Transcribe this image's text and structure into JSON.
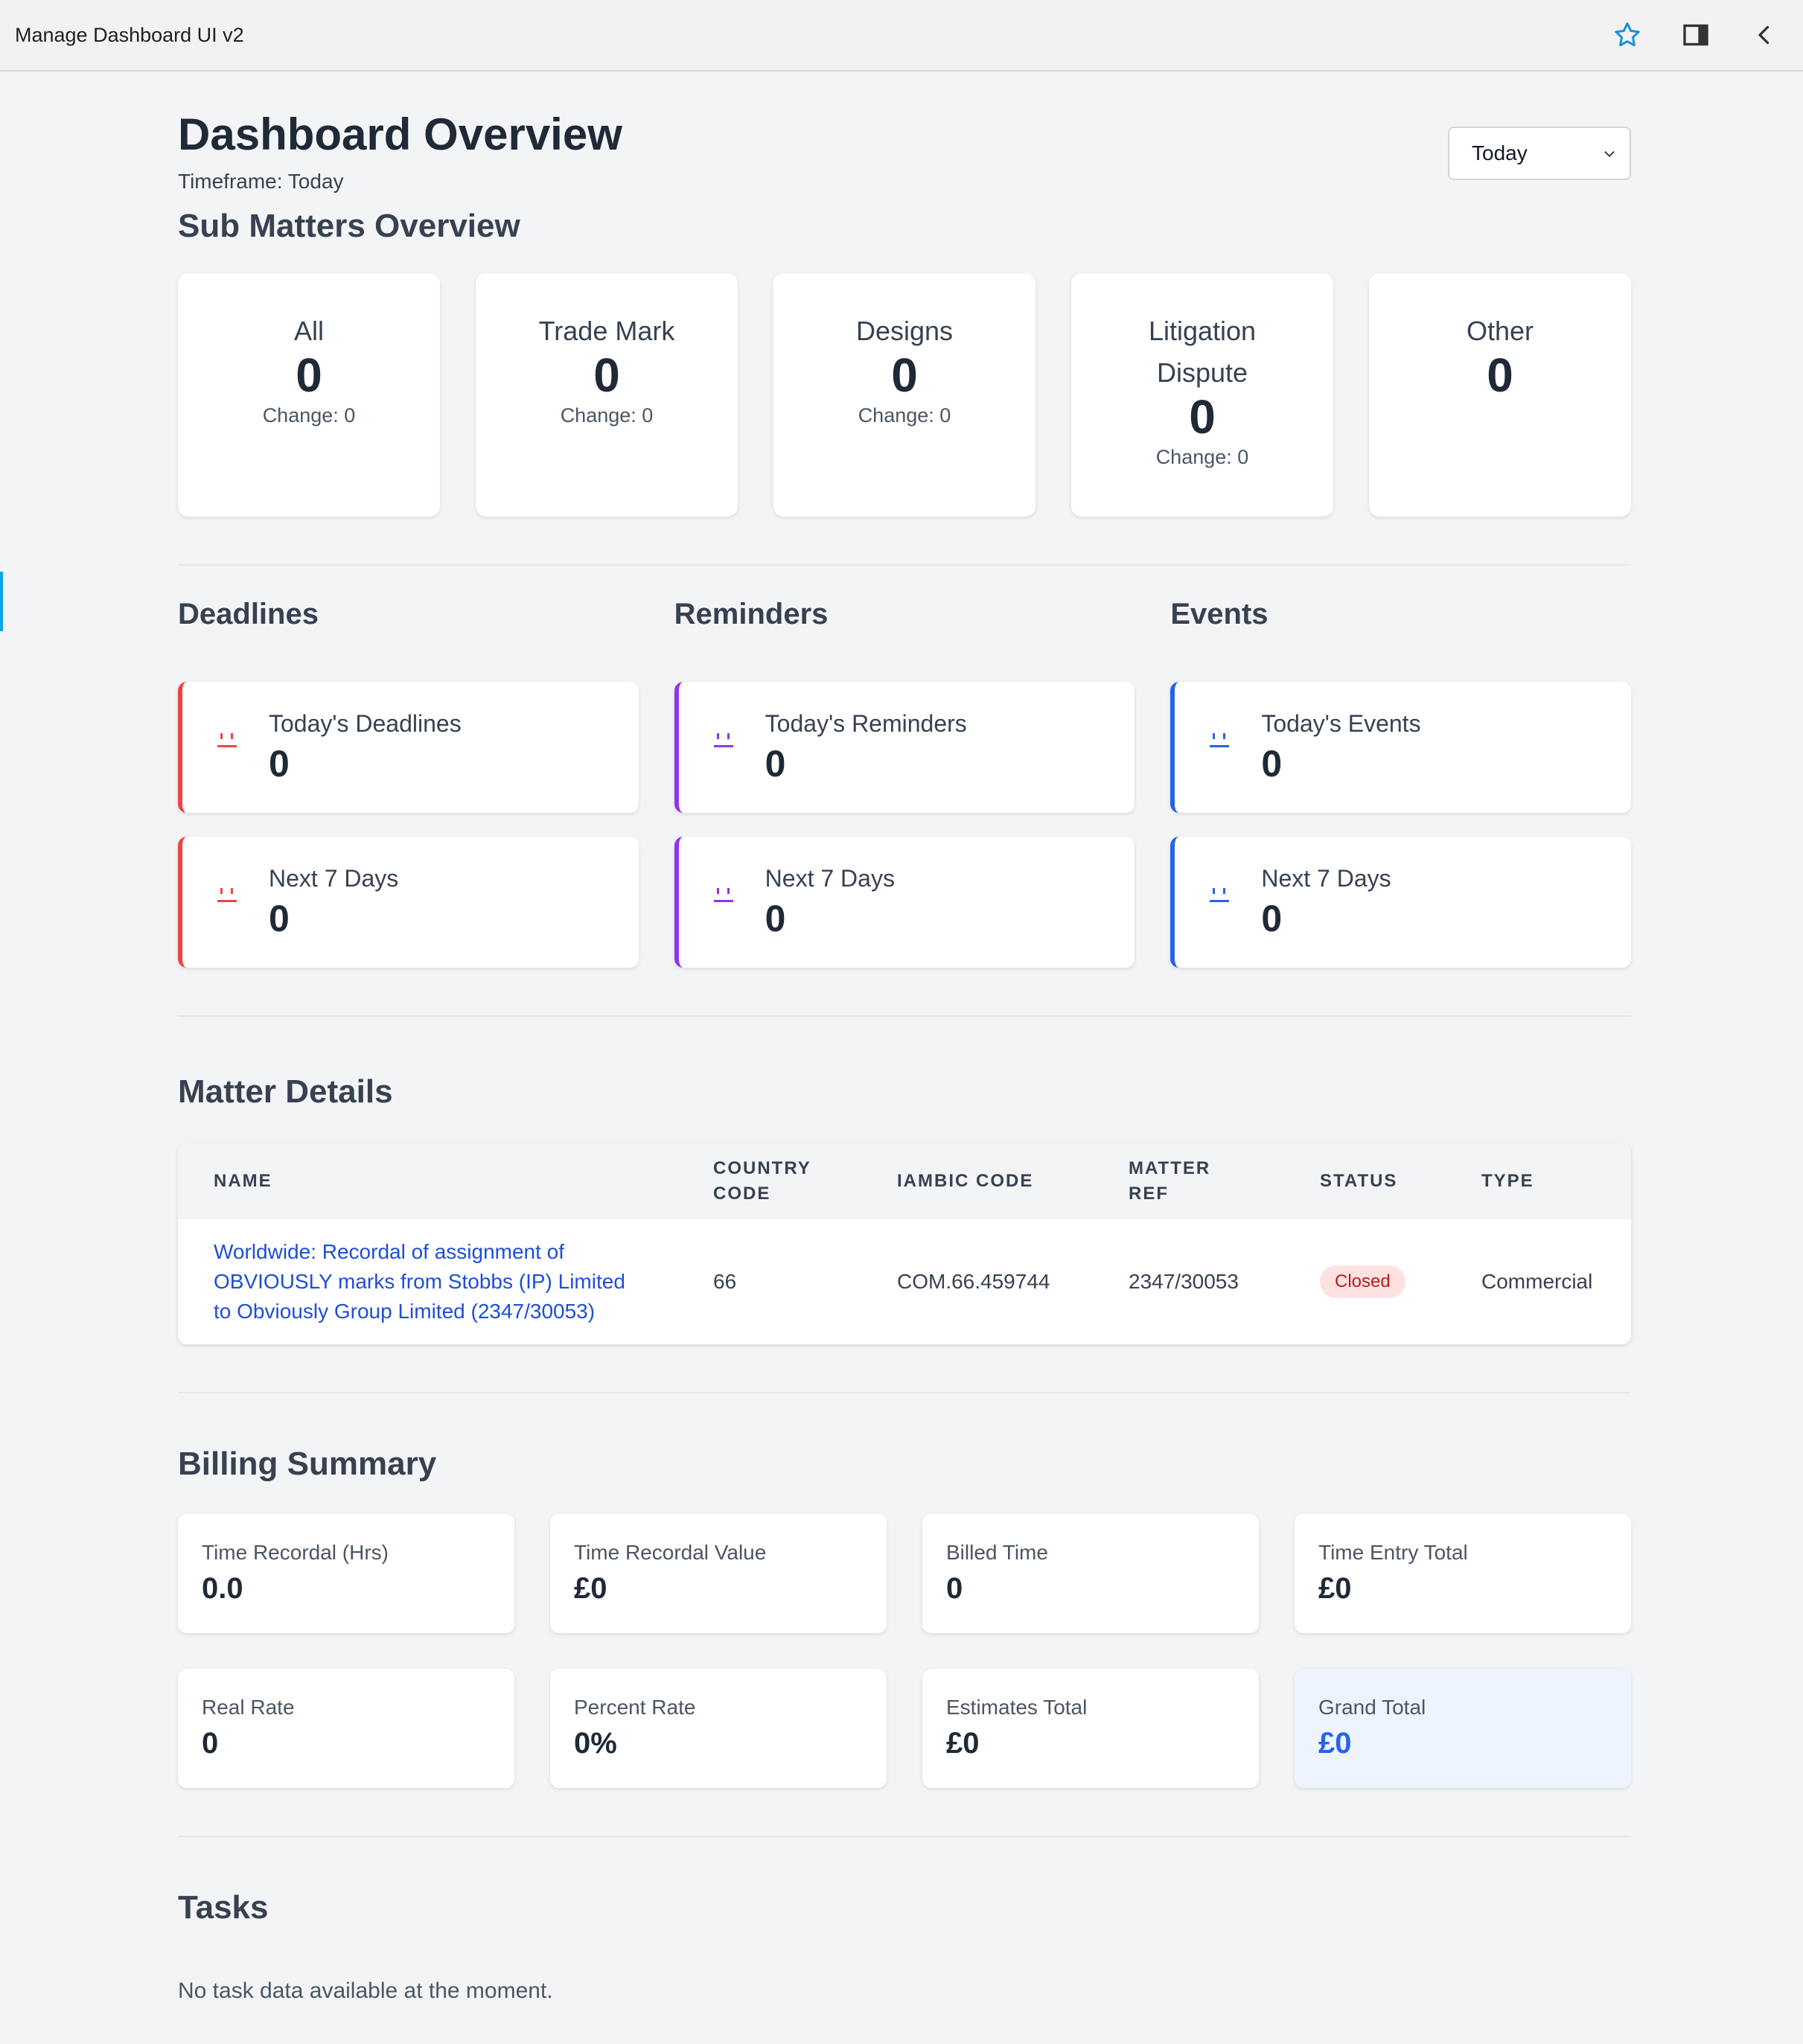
{
  "window": {
    "title": "Manage Dashboard UI v2",
    "icons": [
      "star-icon",
      "sidebar-panel-icon",
      "chevron-left-icon"
    ]
  },
  "header": {
    "title": "Dashboard Overview",
    "timeframe": "Timeframe: Today",
    "select_value": "Today"
  },
  "sub_matters": {
    "title": "Sub Matters Overview",
    "cards": [
      {
        "label": "All",
        "count": "0",
        "change": "Change: 0"
      },
      {
        "label": "Trade Mark",
        "count": "0",
        "change": "Change: 0"
      },
      {
        "label": "Designs",
        "count": "0",
        "change": "Change: 0"
      },
      {
        "label": "Litigation Dispute",
        "count": "0",
        "change": "Change: 0"
      },
      {
        "label": "Other",
        "count": "0",
        "change": ""
      }
    ]
  },
  "deadlines": {
    "title": "Deadlines",
    "today_label": "Today's Deadlines",
    "today_value": "0",
    "next_label": "Next 7 Days",
    "next_value": "0",
    "color": "#ef4444"
  },
  "reminders": {
    "title": "Reminders",
    "today_label": "Today's Reminders",
    "today_value": "0",
    "next_label": "Next 7 Days",
    "next_value": "0",
    "color": "#9333ea"
  },
  "events": {
    "title": "Events",
    "today_label": "Today's Events",
    "today_value": "0",
    "next_label": "Next 7 Days",
    "next_value": "0",
    "color": "#2563eb"
  },
  "matter_details": {
    "title": "Matter Details",
    "columns": {
      "name": "NAME",
      "country_code_1": "COUNTRY",
      "country_code_2": "CODE",
      "iambic_code": "IAMBIC CODE",
      "matter_ref_1": "MATTER",
      "matter_ref_2": "REF",
      "status": "STATUS",
      "type": "TYPE"
    },
    "rows": [
      {
        "name": "Worldwide: Recordal of assignment of OBVIOUSLY marks from Stobbs (IP) Limited to Obviously Group Limited (2347/30053)",
        "country_code": "66",
        "iambic_code": "COM.66.459744",
        "matter_ref": "2347/30053",
        "status": "Closed",
        "type": "Commercial"
      }
    ]
  },
  "billing": {
    "title": "Billing Summary",
    "cards": [
      {
        "label": "Time Recordal (Hrs)",
        "value": "0.0"
      },
      {
        "label": "Time Recordal Value",
        "value": "£0"
      },
      {
        "label": "Billed Time",
        "value": "0"
      },
      {
        "label": "Time Entry Total",
        "value": "£0"
      },
      {
        "label": "Real Rate",
        "value": "0"
      },
      {
        "label": "Percent Rate",
        "value": "0%"
      },
      {
        "label": "Estimates Total",
        "value": "£0"
      },
      {
        "label": "Grand Total",
        "value": "£0"
      }
    ]
  },
  "tasks": {
    "title": "Tasks",
    "empty_message": "No task data available at the moment."
  }
}
